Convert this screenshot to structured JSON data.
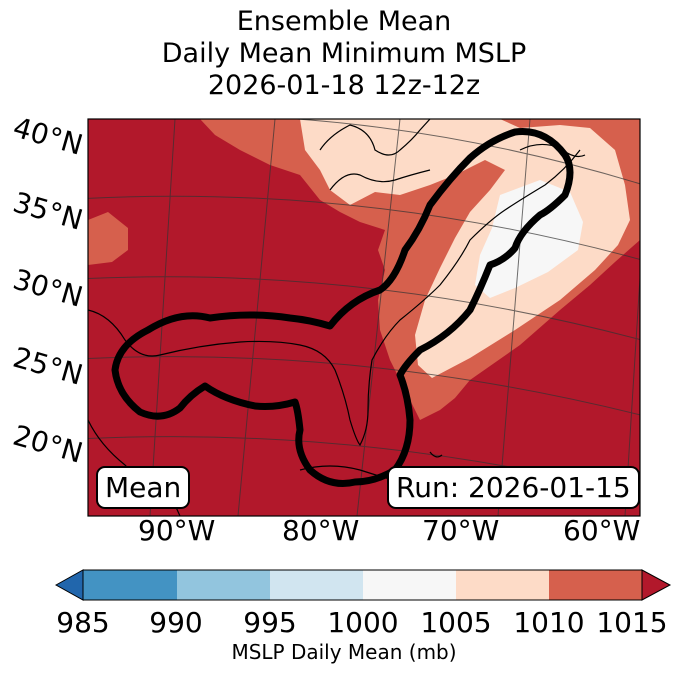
{
  "title": {
    "line1": "Ensemble Mean",
    "line2": "Daily Mean Minimum MSLP",
    "line3": "2026-01-18 12z-12z"
  },
  "latitude_labels": [
    "40°N",
    "35°N",
    "30°N",
    "25°N",
    "20°N"
  ],
  "longitude_labels": [
    "90°W",
    "80°W",
    "70°W",
    "60°W"
  ],
  "mean_label": "Mean",
  "run_label": "Run: 2026-01-15",
  "colorbar": {
    "label": "MSLP Daily Mean (mb)",
    "ticks": [
      "985",
      "990",
      "995",
      "1000",
      "1005",
      "1010",
      "1015"
    ],
    "colors": {
      "under": "#2166ac",
      "985-990": "#4393c3",
      "990-995": "#92c5de",
      "995-1000": "#d1e5f0",
      "1000-1005": "#f7f7f7",
      "1005-1010": "#fddbc7",
      "1010-1015": "#d6604d",
      "over": "#b2182b"
    }
  },
  "map_colors": {
    "ocean_high": "#b2182b",
    "band_1010": "#d6604d",
    "band_1005": "#fddbc7",
    "band_1000": "#f7f7f7"
  }
}
